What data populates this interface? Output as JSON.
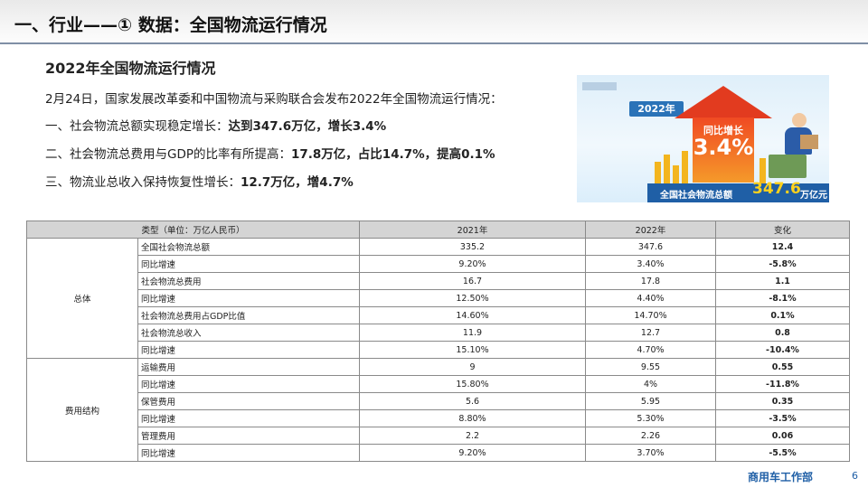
{
  "header": {
    "title": "一、行业——① 数据：全国物流运行情况"
  },
  "section": {
    "title": "2022年全国物流运行情况",
    "intro": "2月24日，国家发展改革委和中国物流与采购联合会发布2022年全国物流运行情况：",
    "points": [
      {
        "normal": "一、社会物流总额实现稳定增长：",
        "bold": "达到347.6万亿，增长3.4%"
      },
      {
        "normal": "二、社会物流总费用与GDP的比率有所提高：",
        "bold": "17.8万亿，占比14.7%，提高0.1%"
      },
      {
        "normal": "三、物流业总收入保持恢复性增长：",
        "bold": "12.7万亿，增4.7%"
      }
    ]
  },
  "infographic": {
    "year": "2022年",
    "growth_label": "同比增长",
    "growth_value": "3.4%",
    "caption": "全国社会物流总额",
    "caption_value": "347.6",
    "caption_unit": "万亿元",
    "colors": {
      "primary": "#1f5fa6",
      "arrow": "#e23b1f",
      "highlight": "#ffd21c"
    }
  },
  "table": {
    "headers": [
      "类型（单位：万亿人民币）",
      "2021年",
      "2022年",
      "变化"
    ],
    "groups": [
      {
        "name": "总体",
        "rows": [
          {
            "item": "全国社会物流总额",
            "y2021": "335.2",
            "y2022": "347.6",
            "change": "12.4"
          },
          {
            "item": "同比增速",
            "y2021": "9.20%",
            "y2022": "3.40%",
            "change": "-5.8%"
          },
          {
            "item": "社会物流总费用",
            "y2021": "16.7",
            "y2022": "17.8",
            "change": "1.1"
          },
          {
            "item": "同比增速",
            "y2021": "12.50%",
            "y2022": "4.40%",
            "change": "-8.1%"
          },
          {
            "item": "社会物流总费用占GDP比值",
            "y2021": "14.60%",
            "y2022": "14.70%",
            "change": "0.1%"
          },
          {
            "item": "社会物流总收入",
            "y2021": "11.9",
            "y2022": "12.7",
            "change": "0.8"
          },
          {
            "item": "同比增速",
            "y2021": "15.10%",
            "y2022": "4.70%",
            "change": "-10.4%"
          }
        ]
      },
      {
        "name": "费用结构",
        "rows": [
          {
            "item": "运输费用",
            "y2021": "9",
            "y2022": "9.55",
            "change": "0.55"
          },
          {
            "item": "同比增速",
            "y2021": "15.80%",
            "y2022": "4%",
            "change": "-11.8%"
          },
          {
            "item": "保管费用",
            "y2021": "5.6",
            "y2022": "5.95",
            "change": "0.35"
          },
          {
            "item": "同比增速",
            "y2021": "8.80%",
            "y2022": "5.30%",
            "change": "-3.5%"
          },
          {
            "item": "管理费用",
            "y2021": "2.2",
            "y2022": "2.26",
            "change": "0.06"
          },
          {
            "item": "同比增速",
            "y2021": "9.20%",
            "y2022": "3.70%",
            "change": "-5.5%"
          }
        ]
      }
    ]
  },
  "footer": {
    "department": "商用车工作部",
    "page": "6"
  }
}
